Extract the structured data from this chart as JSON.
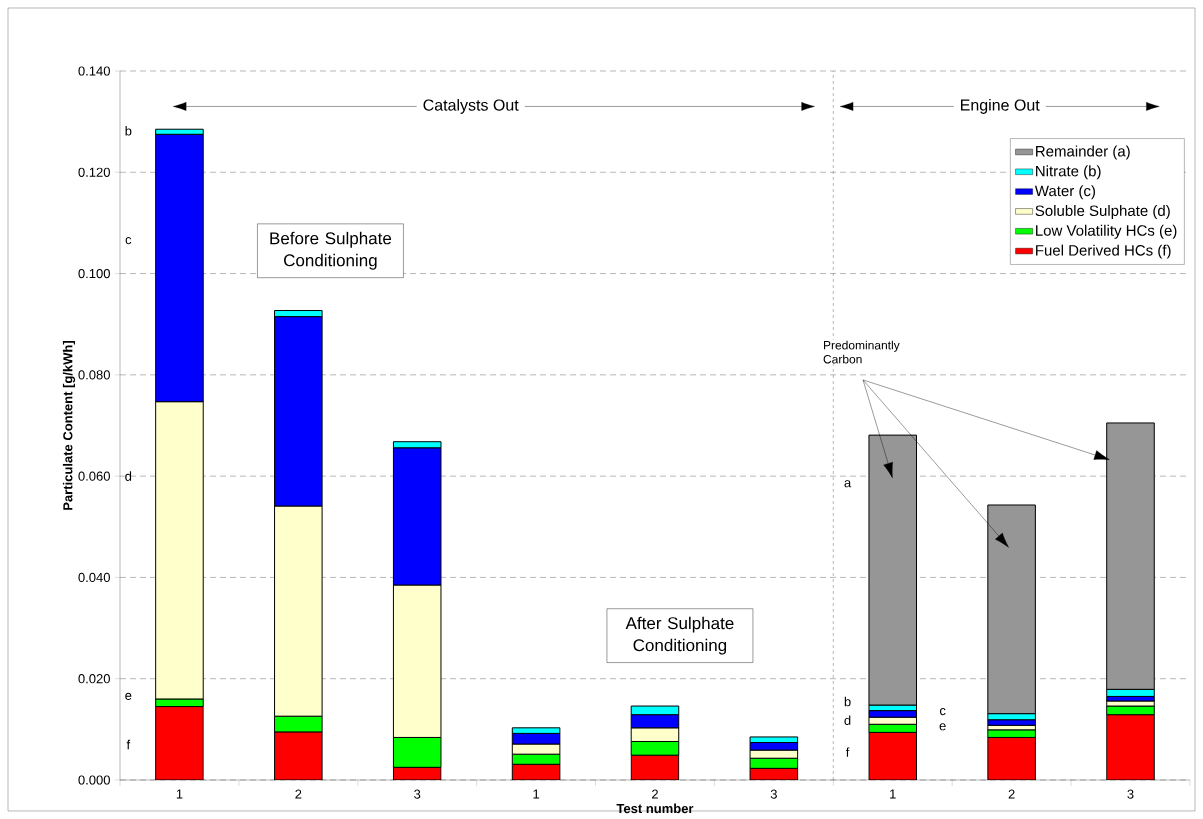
{
  "chart_data": {
    "type": "bar",
    "stacked": true,
    "xlabel": "Test number",
    "ylabel": "Particulate Content [g/kWh]",
    "categories": [
      "1",
      "2",
      "3",
      "1",
      "2",
      "3",
      "1",
      "2",
      "3"
    ],
    "series": [
      {
        "name": "Fuel Derived HCs (f)",
        "color": "#ff0000",
        "values": [
          0.0145,
          0.0095,
          0.0025,
          0.0031,
          0.0049,
          0.0023,
          0.0094,
          0.0084,
          0.0129
        ]
      },
      {
        "name": "Low Volatility HCs (e)",
        "color": "#00ff00",
        "values": [
          0.0015,
          0.0031,
          0.0059,
          0.002,
          0.0027,
          0.002,
          0.0016,
          0.0015,
          0.0017
        ]
      },
      {
        "name": "Soluble Sulphate (d)",
        "color": "#ffffcc",
        "values": [
          0.0587,
          0.0415,
          0.0301,
          0.002,
          0.0027,
          0.0016,
          0.0014,
          0.0009,
          0.001
        ]
      },
      {
        "name": "Water (c)",
        "color": "#0000ff",
        "values": [
          0.0528,
          0.0374,
          0.0271,
          0.0021,
          0.0026,
          0.0015,
          0.0013,
          0.0011,
          0.0009
        ]
      },
      {
        "name": "Nitrate (b)",
        "color": "#00ffff",
        "values": [
          0.001,
          0.0012,
          0.0012,
          0.0011,
          0.0017,
          0.0011,
          0.0011,
          0.0012,
          0.0014
        ]
      },
      {
        "name": "Remainder (a)",
        "color": "#969696",
        "values": [
          null,
          null,
          null,
          null,
          null,
          null,
          0.0533,
          0.0412,
          0.0526
        ]
      }
    ],
    "ylim": [
      0,
      0.14
    ],
    "yticks": [
      {
        "value": 0,
        "label": "0.000"
      },
      {
        "value": 0.02,
        "label": "0.020"
      },
      {
        "value": 0.04,
        "label": "0.040"
      },
      {
        "value": 0.06,
        "label": "0.060"
      },
      {
        "value": 0.08,
        "label": "0.080"
      },
      {
        "value": 0.1,
        "label": "0.100"
      },
      {
        "value": 0.12,
        "label": "0.120"
      },
      {
        "value": 0.14,
        "label": "0.140"
      }
    ],
    "grid": "y",
    "legend": "top right",
    "annotations": [
      "Catalysts Out",
      "Engine Out",
      "Before Sulphate Conditioning",
      "After Sulphate Conditioning",
      "Predominantly Carbon",
      "b",
      "c",
      "d",
      "e",
      "f",
      "a",
      "b",
      "c",
      "d",
      "e",
      "f"
    ]
  }
}
